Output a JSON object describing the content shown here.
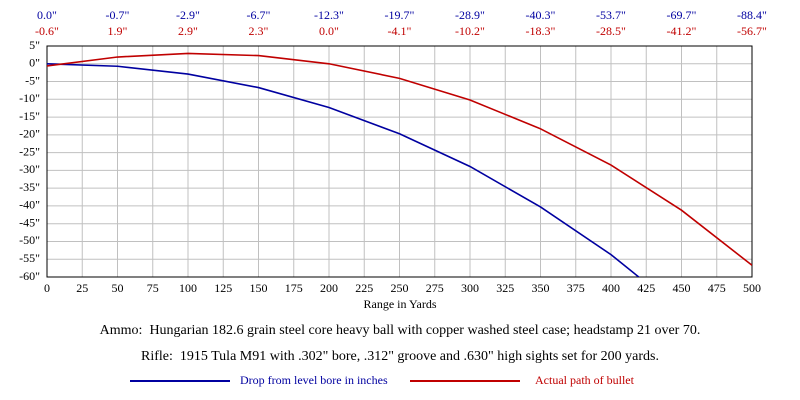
{
  "chart_data": {
    "type": "line",
    "x_label": "Range in Yards",
    "x": [
      0,
      50,
      100,
      150,
      200,
      250,
      300,
      350,
      400,
      450,
      500
    ],
    "series": [
      {
        "name": "Drop from level bore in inches",
        "color": "#0000a0",
        "values": [
          0.0,
          -0.7,
          -2.9,
          -6.7,
          -12.3,
          -19.7,
          -28.9,
          -40.3,
          -53.7,
          -69.7,
          -88.4
        ],
        "value_labels": [
          "0.0\"",
          "-0.7\"",
          "-2.9\"",
          "-6.7\"",
          "-12.3\"",
          "-19.7\"",
          "-28.9\"",
          "-40.3\"",
          "-53.7\"",
          "-69.7\"",
          "-88.4\""
        ]
      },
      {
        "name": "Actual path of bullet",
        "color": "#c00000",
        "values": [
          -0.6,
          1.9,
          2.9,
          2.3,
          0.0,
          -4.1,
          -10.2,
          -18.3,
          -28.5,
          -41.2,
          -56.7
        ],
        "value_labels": [
          "-0.6\"",
          "1.9\"",
          "2.9\"",
          "2.3\"",
          "0.0\"",
          "-4.1\"",
          "-10.2\"",
          "-18.3\"",
          "-28.5\"",
          "-41.2\"",
          "-56.7\""
        ]
      }
    ],
    "xlim": [
      0,
      500
    ],
    "xticks": [
      0,
      25,
      50,
      75,
      100,
      125,
      150,
      175,
      200,
      225,
      250,
      275,
      300,
      325,
      350,
      375,
      400,
      425,
      450,
      475,
      500
    ],
    "ylim": [
      -60,
      5
    ],
    "yticks": [
      {
        "value": 5,
        "label": "5\""
      },
      {
        "value": 0,
        "label": "0\""
      },
      {
        "value": -5,
        "label": "-5\""
      },
      {
        "value": -10,
        "label": "-10\""
      },
      {
        "value": -15,
        "label": "-15\""
      },
      {
        "value": -20,
        "label": "-20\""
      },
      {
        "value": -25,
        "label": "-25\""
      },
      {
        "value": -30,
        "label": "-30\""
      },
      {
        "value": -35,
        "label": "-35\""
      },
      {
        "value": -40,
        "label": "-40\""
      },
      {
        "value": -45,
        "label": "-45\""
      },
      {
        "value": -50,
        "label": "-50\""
      },
      {
        "value": -55,
        "label": "-55\""
      },
      {
        "value": -60,
        "label": "-60\""
      }
    ],
    "grid": true,
    "notes": [
      "Ammo:  Hungarian 182.6 grain steel core heavy ball with copper washed steel case; headstamp 21 over 70.",
      "Rifle:  1915 Tula M91 with .302\" bore, .312\" groove and .630\" high sights set for 200 yards."
    ]
  }
}
